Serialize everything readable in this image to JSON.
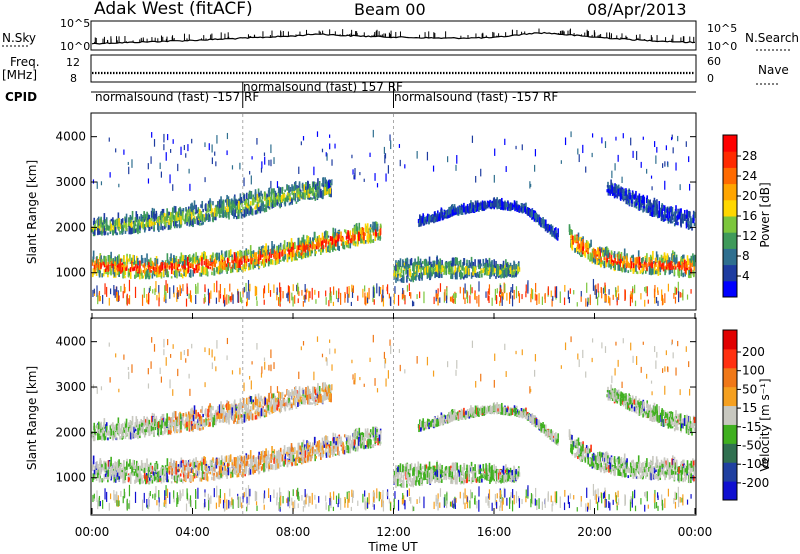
{
  "header": {
    "station": "Adak West (fitACF)",
    "beam": "Beam 00",
    "date": "08/Apr/2013"
  },
  "strip_labels": {
    "nsky": "N.Sky",
    "nsearch": "N.Search",
    "freq": "Freq.",
    "freq_unit": "[MHz]",
    "nave": "Nave",
    "cpid": "CPID"
  },
  "cpid_segments": [
    {
      "label": "normalsound (fast) -157 RF",
      "start_h": 0.0
    },
    {
      "label": "normalsound (fast) 157 RF",
      "start_h": 6.0
    },
    {
      "label": "normalsound (fast) -157 RF",
      "start_h": 12.0
    }
  ],
  "power_colorbar": {
    "title": "Power [dB]",
    "ticks": [
      "4",
      "8",
      "12",
      "16",
      "20",
      "24",
      "28"
    ],
    "colors": [
      "#0000ff",
      "#1e3ca0",
      "#2f6f8f",
      "#3f9a5a",
      "#7cc63c",
      "#ffd700",
      "#ffa500",
      "#ff6a00",
      "#ff2a00",
      "#ff0000"
    ]
  },
  "velocity_colorbar": {
    "title": "Velocity [m s⁻¹]",
    "ticks": [
      "200",
      "100",
      "50",
      "15",
      "-15",
      "-50",
      "-100",
      "-200"
    ],
    "colors": [
      "#1010d0",
      "#2040a0",
      "#307050",
      "#40b020",
      "#c8c8c0",
      "#f5a020",
      "#f07818",
      "#ff3010",
      "#e00000"
    ]
  },
  "chart_data": [
    {
      "type": "line",
      "name": "sky-noise-strip",
      "ylabel_left": [
        "10^5",
        "10^0"
      ],
      "ylabel_right": [
        "10^5",
        "10^0"
      ],
      "series": [
        {
          "name": "N.Sky",
          "x": [
            0,
            2,
            4,
            6,
            8,
            9,
            10,
            12,
            14,
            16,
            17.5,
            18,
            20,
            22,
            24
          ],
          "values": [
            1.0,
            1.3,
            1.6,
            2.0,
            2.4,
            2.8,
            2.5,
            2.2,
            2.0,
            2.1,
            2.9,
            3.0,
            2.2,
            1.6,
            1.2
          ]
        }
      ]
    },
    {
      "type": "line",
      "name": "freq-nave-strip",
      "yticks_left": [
        "12",
        "8"
      ],
      "yticks_right": [
        "60",
        "0"
      ],
      "series": [
        {
          "name": "Freq.",
          "x": [
            0,
            24
          ],
          "values": [
            10.5,
            10.5
          ]
        }
      ]
    },
    {
      "type": "heatmap",
      "name": "power-panel",
      "ylabel": "Slant Range [km]",
      "yticks": [
        "1000",
        "2000",
        "3000",
        "4000"
      ],
      "ylim": [
        200,
        4500
      ],
      "xlim": [
        0,
        24
      ],
      "bands": [
        {
          "x": [
            0,
            2,
            4,
            6,
            8,
            10,
            11.5
          ],
          "y_low": [
            900,
            850,
            880,
            1000,
            1250,
            1500,
            1700
          ],
          "y_high": [
            1300,
            1250,
            1280,
            1400,
            1600,
            1900,
            2000
          ],
          "level": "high"
        },
        {
          "x": [
            0,
            2,
            4,
            6,
            8,
            9.5
          ],
          "y_low": [
            1800,
            1850,
            2000,
            2200,
            2500,
            2650
          ],
          "y_high": [
            2100,
            2200,
            2400,
            2650,
            2850,
            2950
          ],
          "level": "mid"
        },
        {
          "x": [
            12,
            13,
            14,
            16,
            17
          ],
          "y_low": [
            750,
            800,
            850,
            850,
            900
          ],
          "y_high": [
            1150,
            1200,
            1200,
            1150,
            1100
          ],
          "level": "mid"
        },
        {
          "x": [
            13,
            14.5,
            16,
            17.2,
            18.5
          ],
          "y_low": [
            2000,
            2250,
            2400,
            2300,
            1700
          ],
          "y_high": [
            2100,
            2350,
            2500,
            2400,
            1800
          ],
          "level": "low"
        },
        {
          "x": [
            19,
            20,
            21,
            22,
            23,
            24
          ],
          "y_low": [
            1500,
            1150,
            1000,
            950,
            900,
            850
          ],
          "y_high": [
            1900,
            1500,
            1350,
            1300,
            1300,
            1250
          ],
          "level": "high"
        },
        {
          "x": [
            20.5,
            22,
            23,
            24
          ],
          "y_low": [
            2700,
            2300,
            2050,
            1900
          ],
          "y_high": [
            2900,
            2550,
            2350,
            2200
          ],
          "level": "low"
        }
      ]
    },
    {
      "type": "heatmap",
      "name": "velocity-panel",
      "ylabel": "Slant Range [km]",
      "yticks": [
        "1000",
        "2000",
        "3000",
        "4000"
      ],
      "ylim": [
        200,
        4500
      ],
      "xlim": [
        0,
        24
      ],
      "xticks": [
        "00:00",
        "04:00",
        "08:00",
        "12:00",
        "16:00",
        "20:00",
        "00:00"
      ],
      "xlabel": "Time UT"
    }
  ]
}
